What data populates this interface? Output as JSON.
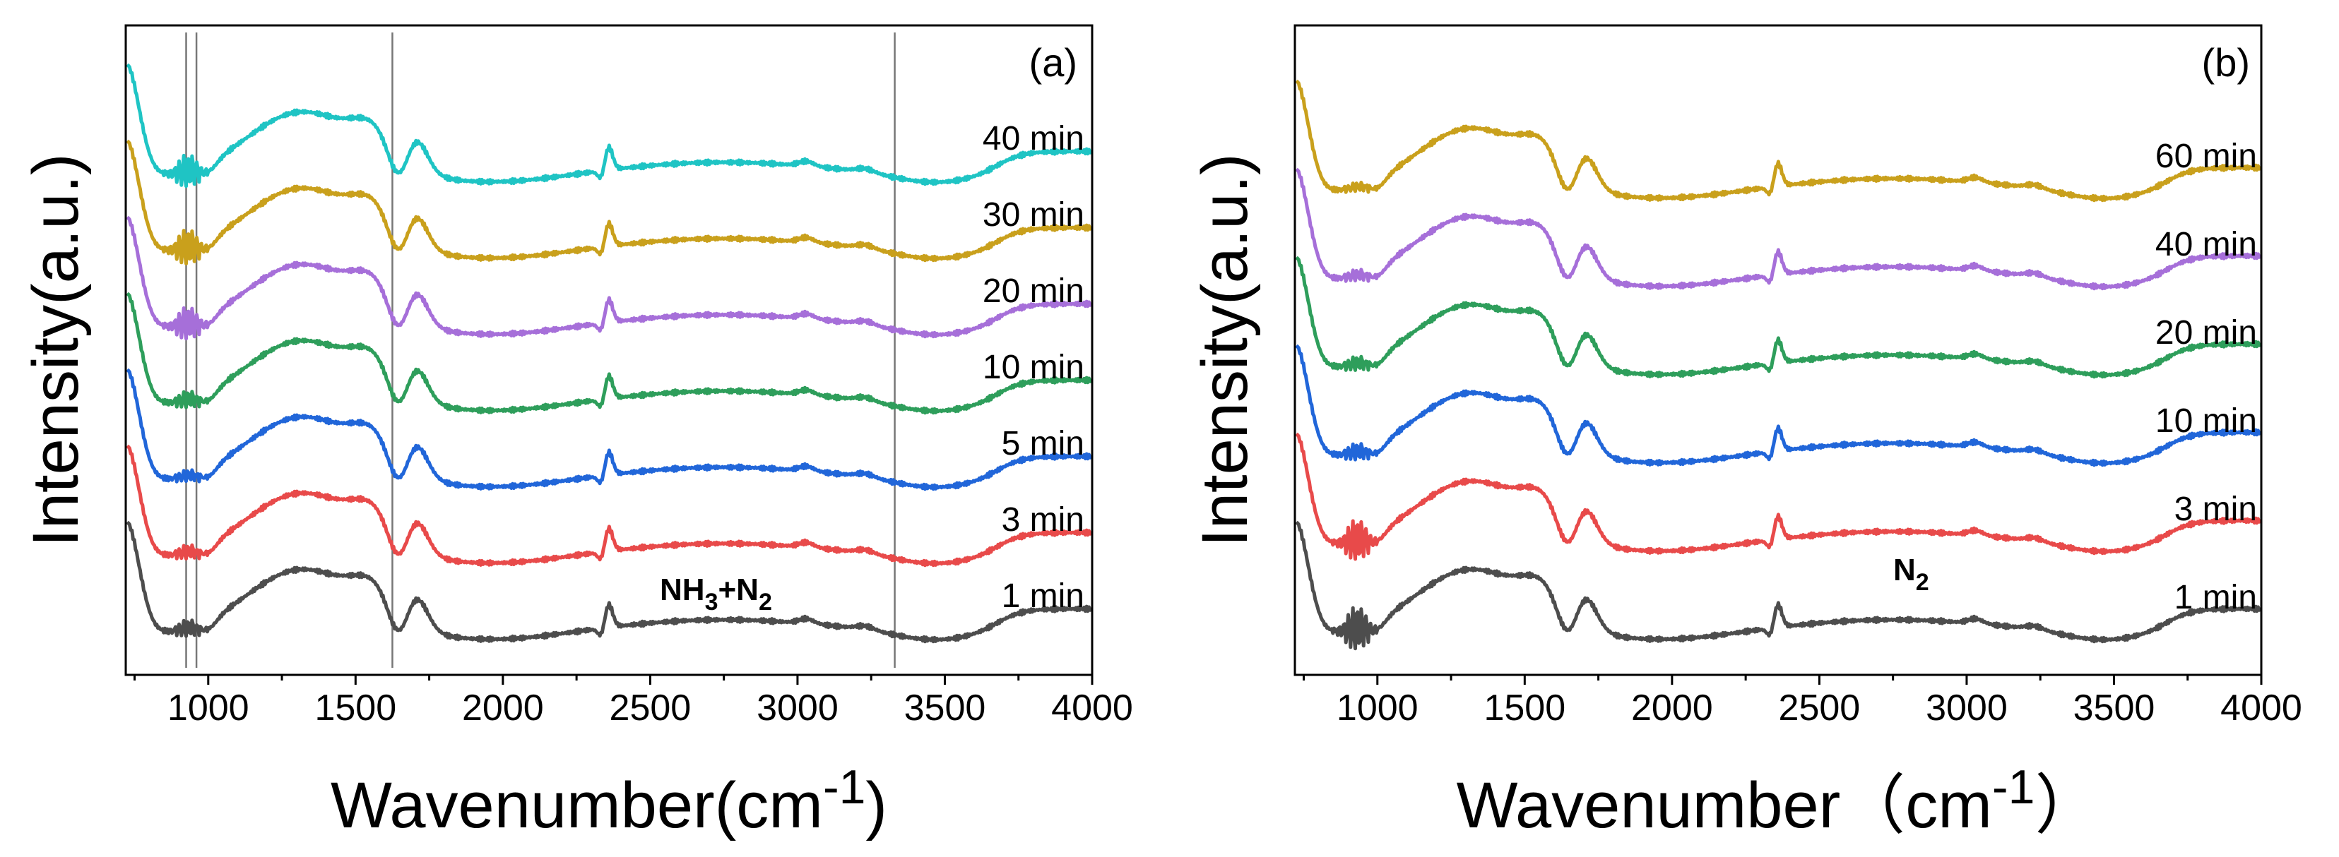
{
  "chart_data": [
    {
      "type": "line",
      "panel_label": "(a)",
      "atmosphere": {
        "main": "NH",
        "sub1": "3",
        "mid": "+N",
        "sub2": "2"
      },
      "xlabel": "Wavenumber",
      "xunit": {
        "open": "(cm",
        "sup": "-1",
        "close": ")"
      },
      "ylabel": "Intensity(a.u.)",
      "xlim": [
        720,
        4000
      ],
      "xticks": [
        1000,
        1500,
        2000,
        2500,
        3000,
        3500,
        4000
      ],
      "xtick_labels": [
        "1000",
        "1500",
        "2000",
        "2500",
        "3000",
        "3500",
        "4000"
      ],
      "reference_lines_cm": [
        925,
        960,
        1625,
        3330
      ],
      "series": [
        {
          "name": "1 min",
          "color": "#4d4d4d",
          "offset": 0
        },
        {
          "name": "3 min",
          "color": "#e84a4a",
          "offset": 1
        },
        {
          "name": "5 min",
          "color": "#2166d9",
          "offset": 2
        },
        {
          "name": "10 min",
          "color": "#2e9e5b",
          "offset": 3
        },
        {
          "name": "20 min",
          "color": "#a66fd9",
          "offset": 4
        },
        {
          "name": "30 min",
          "color": "#c9a01c",
          "offset": 5
        },
        {
          "name": "40 min",
          "color": "#1fc4c4",
          "offset": 6
        }
      ]
    },
    {
      "type": "line",
      "panel_label": "(b)",
      "atmosphere": {
        "main": "N",
        "sub1": "2",
        "mid": "",
        "sub2": ""
      },
      "xlabel": "Wavenumber",
      "xunit": {
        "open": "（cm",
        "sup": "-1",
        "close": "）"
      },
      "ylabel": "Intensity(a.u.)",
      "xlim": [
        720,
        4000
      ],
      "xticks": [
        1000,
        1500,
        2000,
        2500,
        3000,
        3500,
        4000
      ],
      "xtick_labels": [
        "1000",
        "1500",
        "2000",
        "2500",
        "3000",
        "3500",
        "4000"
      ],
      "reference_lines_cm": [],
      "series": [
        {
          "name": "1 min",
          "color": "#4d4d4d",
          "offset": 0
        },
        {
          "name": "3 min",
          "color": "#e84a4a",
          "offset": 1
        },
        {
          "name": "10 min",
          "color": "#2166d9",
          "offset": 2
        },
        {
          "name": "20 min",
          "color": "#2e9e5b",
          "offset": 3
        },
        {
          "name": "40 min",
          "color": "#a66fd9",
          "offset": 4
        },
        {
          "name": "60 min",
          "color": "#c9a01c",
          "offset": 5
        }
      ]
    }
  ]
}
